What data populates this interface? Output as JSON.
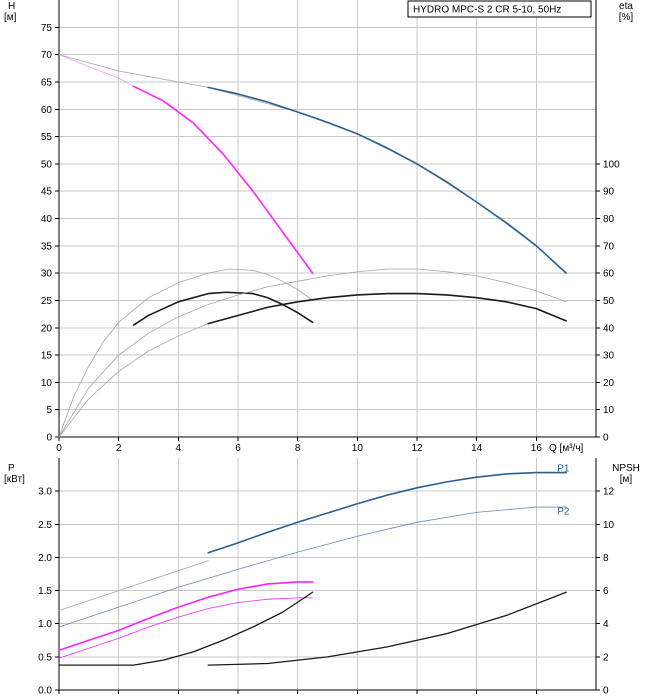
{
  "chart_data": [
    {
      "id": "top",
      "type": "line",
      "title": "HYDRO MPC-S 2 CR 5-10, 50Hz",
      "y_label_left": "H",
      "y_unit_left": "[м]",
      "y_label_right": "eta",
      "y_unit_right": "[%]",
      "x_label": "Q [м³/ч]",
      "xlim": [
        0,
        18
      ],
      "ylim_left": [
        0,
        80
      ],
      "ylim_right": [
        0,
        160
      ],
      "x_ticks": [
        "0",
        "2",
        "4",
        "6",
        "8",
        "10",
        "12",
        "14",
        "16"
      ],
      "y_ticks_left": [
        "0",
        "5",
        "10",
        "15",
        "20",
        "25",
        "30",
        "35",
        "40",
        "45",
        "50",
        "55",
        "60",
        "65",
        "70",
        "75"
      ],
      "y_ticks_right": [
        "0",
        "10",
        "20",
        "30",
        "40",
        "50",
        "60",
        "70",
        "80",
        "90",
        "100"
      ],
      "grid": true,
      "series": [
        {
          "axis": "left",
          "color": "#a6a6a6",
          "width": 0.8,
          "points": [
            [
              0,
              70
            ],
            [
              2,
              67
            ],
            [
              5,
              64
            ],
            [
              8,
              59.5
            ],
            [
              10,
              55.5
            ],
            [
              12,
              50
            ],
            [
              14,
              43
            ],
            [
              16,
              35
            ],
            [
              17,
              30
            ]
          ]
        },
        {
          "axis": "left",
          "color": "#2b5f8f",
          "width": 1.6,
          "points": [
            [
              5,
              64
            ],
            [
              6,
              62.8
            ],
            [
              7,
              61.3
            ],
            [
              8,
              59.5
            ],
            [
              9,
              57.6
            ],
            [
              10,
              55.5
            ],
            [
              11,
              52.9
            ],
            [
              12,
              50
            ],
            [
              13,
              46.7
            ],
            [
              14,
              43
            ],
            [
              15,
              39.2
            ],
            [
              16,
              35
            ],
            [
              17,
              30
            ]
          ]
        },
        {
          "axis": "left",
          "color": "#f0a0f0",
          "width": 0.8,
          "points": [
            [
              0,
              70
            ],
            [
              1,
              67.8
            ],
            [
              2,
              65.7
            ],
            [
              2.5,
              64.2
            ],
            [
              3.5,
              61.5
            ],
            [
              4.5,
              57.5
            ],
            [
              5.5,
              51.8
            ],
            [
              6.5,
              45
            ],
            [
              7.5,
              37.5
            ],
            [
              8.5,
              30
            ]
          ]
        },
        {
          "axis": "left",
          "color": "#ff22ff",
          "width": 1.6,
          "points": [
            [
              2.5,
              64.2
            ],
            [
              3.5,
              61.5
            ],
            [
              4.5,
              57.5
            ],
            [
              5.5,
              51.8
            ],
            [
              6.5,
              45
            ],
            [
              7.5,
              37.5
            ],
            [
              8.5,
              30
            ]
          ]
        },
        {
          "axis": "right",
          "color": "#a6a6a6",
          "width": 0.8,
          "points": [
            [
              0,
              0
            ],
            [
              0.5,
              15
            ],
            [
              1,
              26
            ],
            [
              1.5,
              35
            ],
            [
              2,
              42
            ],
            [
              3,
              51
            ],
            [
              4,
              56.5
            ],
            [
              5,
              60
            ],
            [
              5.7,
              61.5
            ],
            [
              6.5,
              61
            ],
            [
              7,
              59.5
            ],
            [
              7.5,
              57
            ],
            [
              8,
              54
            ],
            [
              8.5,
              50
            ]
          ]
        },
        {
          "axis": "right",
          "color": "#1a1a1a",
          "width": 1.6,
          "points": [
            [
              2.5,
              41
            ],
            [
              3,
              44.5
            ],
            [
              4,
              49.5
            ],
            [
              5,
              52.5
            ],
            [
              5.6,
              53
            ],
            [
              6.5,
              52.5
            ],
            [
              7,
              51
            ],
            [
              7.5,
              48.5
            ],
            [
              8,
              45.5
            ],
            [
              8.5,
              42
            ]
          ]
        },
        {
          "axis": "right",
          "color": "#a6a6a6",
          "width": 0.8,
          "points": [
            [
              0,
              0
            ],
            [
              1,
              18
            ],
            [
              2,
              30
            ],
            [
              3,
              38
            ],
            [
              4,
              44
            ],
            [
              5,
              48.5
            ],
            [
              6,
              52
            ],
            [
              7,
              55
            ],
            [
              8,
              57
            ],
            [
              9,
              59
            ],
            [
              10,
              60.5
            ],
            [
              11,
              61.5
            ],
            [
              12,
              61.5
            ],
            [
              13,
              60.5
            ],
            [
              14,
              59
            ],
            [
              15,
              56.5
            ],
            [
              16,
              53.5
            ],
            [
              17,
              49.5
            ]
          ]
        },
        {
          "axis": "right",
          "color": "#a6a6a6",
          "width": 0.8,
          "points": [
            [
              0,
              0
            ],
            [
              1,
              14
            ],
            [
              2,
              24
            ],
            [
              3,
              31.5
            ],
            [
              4,
              37
            ],
            [
              5,
              41.5
            ]
          ]
        },
        {
          "axis": "right",
          "color": "#1a1a1a",
          "width": 1.6,
          "points": [
            [
              5,
              41.5
            ],
            [
              6,
              44.5
            ],
            [
              7,
              47.5
            ],
            [
              8,
              49.5
            ],
            [
              9,
              51
            ],
            [
              10,
              52
            ],
            [
              11,
              52.5
            ],
            [
              12,
              52.5
            ],
            [
              13,
              52
            ],
            [
              14,
              51
            ],
            [
              15,
              49.5
            ],
            [
              16,
              47
            ],
            [
              17,
              42.5
            ]
          ]
        }
      ]
    },
    {
      "id": "bottom",
      "type": "line",
      "y_label_left": "P",
      "y_unit_left": "[кВт]",
      "y_label_right": "NPSH",
      "y_unit_right": "[м]",
      "xlim": [
        0,
        18
      ],
      "ylim_left": [
        0,
        3.5
      ],
      "ylim_right": [
        0,
        14
      ],
      "x_ticks": [
        "0",
        "2",
        "4",
        "6",
        "8",
        "10",
        "12",
        "14",
        "16"
      ],
      "y_ticks_left": [
        "0.0",
        "0.5",
        "1.0",
        "1.5",
        "2.0",
        "2.5",
        "3.0"
      ],
      "y_ticks_right": [
        "0",
        "2",
        "4",
        "6",
        "8",
        "10",
        "12"
      ],
      "grid": true,
      "series_labels": [
        {
          "text": "P1",
          "x": 16.7,
          "y": 3.3,
          "color": "#2b5f8f"
        },
        {
          "text": "P2",
          "x": 16.7,
          "y": 2.65,
          "color": "#2b5f8f"
        }
      ],
      "series": [
        {
          "axis": "left",
          "color": "#a6a6a6",
          "width": 0.8,
          "points": [
            [
              0,
              1.2
            ],
            [
              2,
              1.5
            ],
            [
              4,
              1.8
            ],
            [
              5,
              1.95
            ]
          ]
        },
        {
          "axis": "left",
          "color": "#2b5f8f",
          "width": 1.6,
          "points": [
            [
              5,
              2.07
            ],
            [
              6,
              2.22
            ],
            [
              7,
              2.38
            ],
            [
              8,
              2.53
            ],
            [
              9,
              2.67
            ],
            [
              10,
              2.81
            ],
            [
              11,
              2.94
            ],
            [
              12,
              3.05
            ],
            [
              13,
              3.14
            ],
            [
              14,
              3.21
            ],
            [
              15,
              3.26
            ],
            [
              16,
              3.28
            ],
            [
              17,
              3.28
            ]
          ]
        },
        {
          "axis": "left",
          "color": "#6b8cb5",
          "width": 0.8,
          "points": [
            [
              0,
              0.95
            ],
            [
              2,
              1.25
            ],
            [
              4,
              1.55
            ],
            [
              6,
              1.82
            ],
            [
              8,
              2.08
            ],
            [
              10,
              2.32
            ],
            [
              12,
              2.53
            ],
            [
              14,
              2.68
            ],
            [
              16,
              2.76
            ],
            [
              17,
              2.76
            ]
          ]
        },
        {
          "axis": "left",
          "color": "#ff22ff",
          "width": 1.6,
          "points": [
            [
              0,
              0.6
            ],
            [
              1,
              0.75
            ],
            [
              2,
              0.9
            ],
            [
              3,
              1.08
            ],
            [
              4,
              1.25
            ],
            [
              5,
              1.4
            ],
            [
              6,
              1.52
            ],
            [
              7,
              1.6
            ],
            [
              8,
              1.63
            ],
            [
              8.5,
              1.63
            ]
          ]
        },
        {
          "axis": "left",
          "color": "#ff22ff",
          "width": 0.8,
          "points": [
            [
              0,
              0.48
            ],
            [
              1,
              0.63
            ],
            [
              2,
              0.78
            ],
            [
              3,
              0.95
            ],
            [
              4,
              1.1
            ],
            [
              5,
              1.23
            ],
            [
              6,
              1.32
            ],
            [
              7,
              1.37
            ],
            [
              8,
              1.39
            ],
            [
              8.5,
              1.39
            ]
          ]
        },
        {
          "axis": "right",
          "color": "#1a1a1a",
          "width": 1.3,
          "points": [
            [
              0,
              1.5
            ],
            [
              2.5,
              1.5
            ],
            [
              3.5,
              1.8
            ],
            [
              4.5,
              2.3
            ],
            [
              5.5,
              3
            ],
            [
              6.5,
              3.8
            ],
            [
              7.5,
              4.7
            ],
            [
              8.5,
              5.9
            ]
          ]
        },
        {
          "axis": "right",
          "color": "#1a1a1a",
          "width": 1.3,
          "points": [
            [
              5,
              1.5
            ],
            [
              7,
              1.6
            ],
            [
              9,
              2
            ],
            [
              11,
              2.6
            ],
            [
              13,
              3.4
            ],
            [
              15,
              4.5
            ],
            [
              17,
              5.9
            ]
          ]
        }
      ]
    }
  ]
}
